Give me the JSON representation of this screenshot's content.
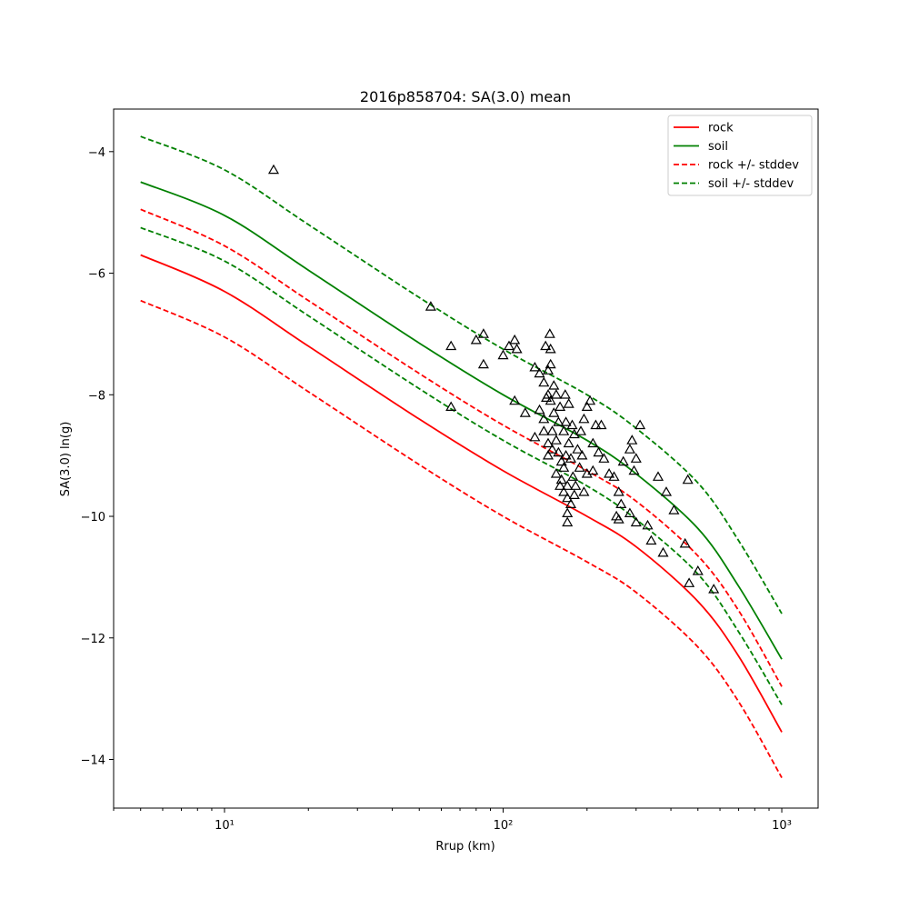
{
  "chart_data": {
    "type": "line",
    "title": "2016p858704: SA(3.0) mean",
    "xlabel": "Rrup (km)",
    "ylabel": "SA(3.0) ln(g)",
    "xscale": "log",
    "xlim": [
      4,
      1350
    ],
    "ylim": [
      -14.8,
      -3.3
    ],
    "yticks": [
      -14,
      -12,
      -10,
      -8,
      -6,
      -4
    ],
    "xticks_major": [
      10,
      100,
      1000
    ],
    "xtick_labels": [
      "10¹",
      "10²",
      "10³"
    ],
    "grid": false,
    "legend_position": "top-right",
    "x": [
      5,
      10,
      20,
      50,
      100,
      200,
      300,
      500,
      700,
      1000
    ],
    "series": [
      {
        "name": "rock",
        "color": "#ff0000",
        "dash": "solid",
        "values": [
          -5.7,
          -6.3,
          -7.2,
          -8.4,
          -9.25,
          -10.0,
          -10.5,
          -11.4,
          -12.3,
          -13.55
        ]
      },
      {
        "name": "soil",
        "color": "#008000",
        "dash": "solid",
        "values": [
          -4.5,
          -5.05,
          -5.95,
          -7.15,
          -8.0,
          -8.75,
          -9.3,
          -10.2,
          -11.15,
          -12.35
        ]
      },
      {
        "name": "rock +/- stddev",
        "color": "#ff0000",
        "dash": "dashed",
        "values": [
          -4.95,
          -5.55,
          -6.45,
          -7.65,
          -8.5,
          -9.25,
          -9.75,
          -10.65,
          -11.55,
          -12.8
        ]
      },
      {
        "name": "rock +/- stddev (lower)",
        "color": "#ff0000",
        "dash": "dashed",
        "legend": false,
        "values": [
          -6.45,
          -7.05,
          -7.95,
          -9.15,
          -10.0,
          -10.75,
          -11.25,
          -12.15,
          -13.05,
          -14.3
        ]
      },
      {
        "name": "soil +/- stddev",
        "color": "#008000",
        "dash": "dashed",
        "values": [
          -3.75,
          -4.3,
          -5.2,
          -6.4,
          -7.25,
          -8.0,
          -8.55,
          -9.45,
          -10.4,
          -11.6
        ]
      },
      {
        "name": "soil +/- stddev (lower)",
        "color": "#008000",
        "dash": "dashed",
        "legend": false,
        "values": [
          -5.25,
          -5.8,
          -6.7,
          -7.9,
          -8.75,
          -9.5,
          -10.05,
          -10.95,
          -11.9,
          -13.1
        ]
      }
    ],
    "observations": {
      "marker": "triangle",
      "points": [
        [
          15,
          -4.3
        ],
        [
          55,
          -6.55
        ],
        [
          65,
          -7.2
        ],
        [
          65,
          -8.2
        ],
        [
          80,
          -7.1
        ],
        [
          85,
          -7.0
        ],
        [
          85,
          -7.5
        ],
        [
          100,
          -7.35
        ],
        [
          105,
          -7.2
        ],
        [
          110,
          -7.1
        ],
        [
          112,
          -7.25
        ],
        [
          110,
          -8.1
        ],
        [
          120,
          -8.3
        ],
        [
          130,
          -8.7
        ],
        [
          130,
          -7.55
        ],
        [
          135,
          -7.65
        ],
        [
          135,
          -8.25
        ],
        [
          140,
          -7.8
        ],
        [
          140,
          -8.4
        ],
        [
          140,
          -8.6
        ],
        [
          142,
          -7.2
        ],
        [
          143,
          -8.05
        ],
        [
          145,
          -7.6
        ],
        [
          145,
          -8.0
        ],
        [
          145,
          -8.8
        ],
        [
          145,
          -9.0
        ],
        [
          147,
          -7.0
        ],
        [
          148,
          -7.25
        ],
        [
          148,
          -7.5
        ],
        [
          148,
          -8.1
        ],
        [
          150,
          -8.9
        ],
        [
          150,
          -8.6
        ],
        [
          152,
          -7.85
        ],
        [
          152,
          -8.3
        ],
        [
          155,
          -8.0
        ],
        [
          155,
          -8.75
        ],
        [
          155,
          -9.3
        ],
        [
          158,
          -8.45
        ],
        [
          158,
          -8.95
        ],
        [
          160,
          -9.5
        ],
        [
          160,
          -8.2
        ],
        [
          162,
          -9.1
        ],
        [
          162,
          -9.4
        ],
        [
          165,
          -8.6
        ],
        [
          165,
          -9.6
        ],
        [
          165,
          -9.2
        ],
        [
          167,
          -8.0
        ],
        [
          168,
          -8.45
        ],
        [
          168,
          -9.0
        ],
        [
          170,
          -9.7
        ],
        [
          170,
          -9.5
        ],
        [
          170,
          -9.95
        ],
        [
          170,
          -10.1
        ],
        [
          172,
          -8.15
        ],
        [
          172,
          -8.8
        ],
        [
          175,
          -9.05
        ],
        [
          175,
          -9.8
        ],
        [
          177,
          -8.5
        ],
        [
          178,
          -9.35
        ],
        [
          180,
          -9.65
        ],
        [
          180,
          -8.65
        ],
        [
          182,
          -9.5
        ],
        [
          185,
          -8.9
        ],
        [
          188,
          -9.2
        ],
        [
          190,
          -8.6
        ],
        [
          192,
          -9.0
        ],
        [
          195,
          -8.4
        ],
        [
          195,
          -9.6
        ],
        [
          200,
          -8.2
        ],
        [
          200,
          -9.3
        ],
        [
          205,
          -8.1
        ],
        [
          210,
          -8.8
        ],
        [
          210,
          -9.25
        ],
        [
          215,
          -8.5
        ],
        [
          220,
          -8.95
        ],
        [
          225,
          -8.5
        ],
        [
          230,
          -9.05
        ],
        [
          240,
          -9.3
        ],
        [
          250,
          -9.35
        ],
        [
          255,
          -10.0
        ],
        [
          260,
          -9.6
        ],
        [
          260,
          -10.05
        ],
        [
          265,
          -9.8
        ],
        [
          270,
          -9.1
        ],
        [
          285,
          -8.9
        ],
        [
          285,
          -9.95
        ],
        [
          290,
          -8.75
        ],
        [
          295,
          -9.25
        ],
        [
          300,
          -10.1
        ],
        [
          300,
          -9.05
        ],
        [
          310,
          -8.5
        ],
        [
          330,
          -10.15
        ],
        [
          340,
          -10.4
        ],
        [
          360,
          -9.35
        ],
        [
          375,
          -10.6
        ],
        [
          385,
          -9.6
        ],
        [
          410,
          -9.9
        ],
        [
          450,
          -10.45
        ],
        [
          460,
          -9.4
        ],
        [
          465,
          -11.1
        ],
        [
          500,
          -10.9
        ],
        [
          570,
          -11.2
        ]
      ]
    }
  }
}
